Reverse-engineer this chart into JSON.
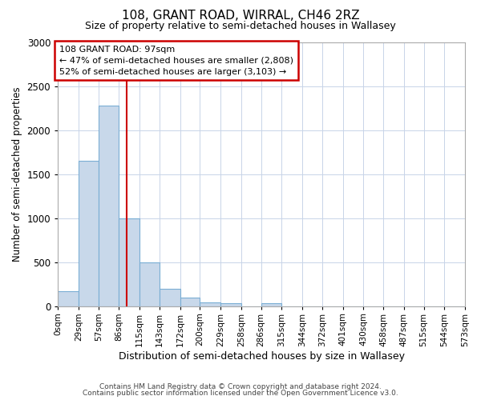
{
  "title": "108, GRANT ROAD, WIRRAL, CH46 2RZ",
  "subtitle": "Size of property relative to semi-detached houses in Wallasey",
  "xlabel": "Distribution of semi-detached houses by size in Wallasey",
  "ylabel": "Number of semi-detached properties",
  "footer_line1": "Contains HM Land Registry data © Crown copyright and database right 2024.",
  "footer_line2": "Contains public sector information licensed under the Open Government Licence v3.0.",
  "annotation_title": "108 GRANT ROAD: 97sqm",
  "annotation_line1": "← 47% of semi-detached houses are smaller (2,808)",
  "annotation_line2": "52% of semi-detached houses are larger (3,103) →",
  "property_size": 97,
  "bin_edges": [
    0,
    29,
    57,
    86,
    115,
    143,
    172,
    200,
    229,
    258,
    286,
    315,
    344,
    372,
    401,
    430,
    458,
    487,
    515,
    544,
    573
  ],
  "bin_counts": [
    175,
    1650,
    2275,
    1000,
    500,
    200,
    100,
    50,
    40,
    0,
    40,
    0,
    0,
    0,
    0,
    0,
    0,
    0,
    0,
    0
  ],
  "bar_color": "#c8d8ea",
  "bar_edge_color": "#7aaed4",
  "red_line_color": "#cc0000",
  "annotation_box_edge_color": "#cc0000",
  "grid_color": "#c8d4e8",
  "background_color": "#ffffff",
  "fig_background_color": "#ffffff",
  "ylim": [
    0,
    3000
  ],
  "yticks": [
    0,
    500,
    1000,
    1500,
    2000,
    2500,
    3000
  ]
}
